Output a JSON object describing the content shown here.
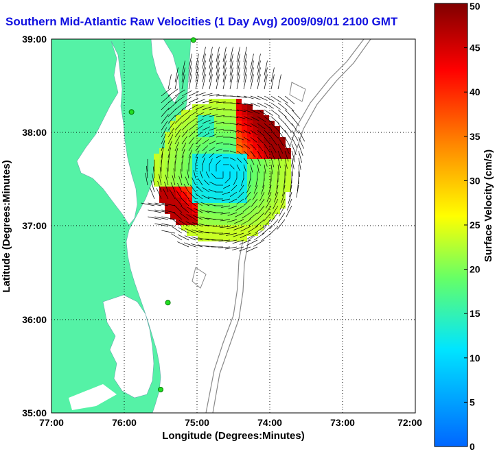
{
  "title": "Southern Mid-Atlantic Raw Velocities (1 Day Avg) 2009/09/01 2100 GMT",
  "chart_data": {
    "type": "heatmap",
    "xlabel": "Longitude (Degrees:Minutes)",
    "ylabel": "Latitude (Degrees:Minutes)",
    "x_ticks": [
      "77:00",
      "76:00",
      "75:00",
      "74:00",
      "73:00",
      "72:00"
    ],
    "y_ticks": [
      "39:00",
      "38:00",
      "37:00",
      "36:00",
      "35:00"
    ],
    "xlim_deg_west": [
      77,
      72
    ],
    "ylim_deg_north": [
      35,
      39
    ],
    "grid": true,
    "colorbar": {
      "label": "Surface Velocity (cm/s)",
      "min": 0,
      "max": 50,
      "ticks": [
        "0",
        "5",
        "10",
        "15",
        "20",
        "25",
        "30",
        "35",
        "40",
        "45",
        "50"
      ],
      "colors": [
        "#0066ff",
        "#00e5ff",
        "#66ff66",
        "#ffff00",
        "#ff8800",
        "#ff0000",
        "#800000"
      ]
    },
    "land_color": "#55f2a6",
    "stations": [
      {
        "lon": -75.05,
        "lat": 38.99
      },
      {
        "lon": -75.9,
        "lat": 38.22
      },
      {
        "lon": -75.4,
        "lat": 36.18
      },
      {
        "lon": -75.5,
        "lat": 35.25
      }
    ]
  }
}
